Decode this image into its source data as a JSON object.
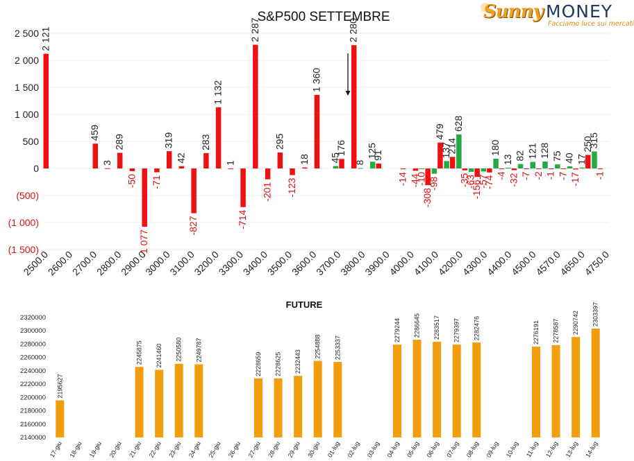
{
  "logo": {
    "brand_a": "Sunny",
    "brand_b": "MONEY",
    "tagline": "Facciamo luce sui mercati",
    "colors": {
      "brand_a": "#f0a020",
      "brand_b": "#1f3a63"
    }
  },
  "chart_data": [
    {
      "type": "bar",
      "title": "S&P500 SETTEMBRE",
      "xlabel": "",
      "ylabel": "",
      "ylim": [
        -1500,
        2500
      ],
      "y_ticks": [
        {
          "value": 2500,
          "label": "2 500"
        },
        {
          "value": 2000,
          "label": "2 000"
        },
        {
          "value": 1500,
          "label": "1 500"
        },
        {
          "value": 1000,
          "label": "1 000"
        },
        {
          "value": 500,
          "label": "500"
        },
        {
          "value": 0,
          "label": "0"
        },
        {
          "value": -500,
          "label": "(500)"
        },
        {
          "value": -1000,
          "label": "(1 000)"
        },
        {
          "value": -1500,
          "label": "(1 500)"
        }
      ],
      "x_tick_labels": [
        "2500.0",
        "2600.0",
        "2700.0",
        "2800.0",
        "2900.0",
        "3000.0",
        "3100.0",
        "3200.0",
        "3300.0",
        "3400.0",
        "3500.0",
        "3600.0",
        "3700.0",
        "3800.0",
        "3900.0",
        "4000.0",
        "4100.0",
        "4200.0",
        "4300.0",
        "4400.0",
        "4500.0",
        "4570.0",
        "4650.0",
        "4750.0"
      ],
      "grid": true,
      "colors": {
        "red": "#ee1111",
        "green": "#22aa44",
        "negative_label": "#dd1111"
      },
      "annotations": [
        {
          "type": "arrow-down",
          "category_index": 16
        }
      ],
      "series": [
        {
          "color": "red",
          "values": [
            {
              "i": 0,
              "v": 2121,
              "label": "2 121"
            },
            {
              "i": 4,
              "v": 459,
              "label": "459"
            },
            {
              "i": 5,
              "v": 3,
              "label": "3"
            },
            {
              "i": 6,
              "v": 289,
              "label": "289"
            },
            {
              "i": 7,
              "v": -50,
              "label": "-50"
            },
            {
              "i": 8,
              "v": -1077,
              "label": "-1 077"
            },
            {
              "i": 9,
              "v": -71,
              "label": "-71"
            },
            {
              "i": 10,
              "v": 319,
              "label": "319"
            },
            {
              "i": 11,
              "v": 42,
              "label": "42"
            },
            {
              "i": 12,
              "v": -827,
              "label": "-827"
            },
            {
              "i": 13,
              "v": 283,
              "label": "283"
            },
            {
              "i": 14,
              "v": 1132,
              "label": "1 132"
            },
            {
              "i": 15,
              "v": 1,
              "label": "1"
            },
            {
              "i": 16,
              "v": -714,
              "label": "-714"
            },
            {
              "i": 17,
              "v": 2287,
              "label": "2 287"
            },
            {
              "i": 18,
              "v": -201,
              "label": "-201"
            },
            {
              "i": 19,
              "v": 295,
              "label": "295"
            },
            {
              "i": 20,
              "v": -123,
              "label": "-123"
            },
            {
              "i": 21,
              "v": 18,
              "label": "18"
            },
            {
              "i": 22,
              "v": 1360,
              "label": "1 360"
            },
            {
              "i": 24,
              "v": 176,
              "label": "176"
            },
            {
              "i": 25,
              "v": 2280,
              "label": "2 280"
            },
            {
              "i": 27,
              "v": 91,
              "label": "91"
            },
            {
              "i": 29,
              "v": -14,
              "label": "-14"
            },
            {
              "i": 30,
              "v": -44,
              "label": "-44"
            },
            {
              "i": 31,
              "v": -308,
              "label": "-308"
            },
            {
              "i": 32,
              "v": 479,
              "label": "479"
            },
            {
              "i": 33,
              "v": 214,
              "label": "214"
            },
            {
              "i": 34,
              "v": -35,
              "label": "-35"
            },
            {
              "i": 35,
              "v": -156,
              "label": "-156"
            },
            {
              "i": 36,
              "v": -74,
              "label": "-74"
            },
            {
              "i": 37,
              "v": -4,
              "label": "-4"
            },
            {
              "i": 38,
              "v": -32,
              "label": "-32"
            },
            {
              "i": 39,
              "v": -7,
              "label": "-7"
            },
            {
              "i": 40,
              "v": -2,
              "label": "-2"
            },
            {
              "i": 41,
              "v": -1,
              "label": "-1"
            },
            {
              "i": 42,
              "v": -7,
              "label": "-7"
            },
            {
              "i": 43,
              "v": -17,
              "label": "-17"
            },
            {
              "i": 44,
              "v": 250,
              "label": "250"
            },
            {
              "i": 45,
              "v": -1,
              "label": "-1"
            }
          ]
        },
        {
          "color": "green",
          "values": [
            {
              "i": 23,
              "v": 45,
              "label": "45"
            },
            {
              "i": 25,
              "v": 8,
              "label": "8"
            },
            {
              "i": 26,
              "v": 125,
              "label": "125"
            },
            {
              "i": 30,
              "v": -10,
              "label": "-10"
            },
            {
              "i": 31,
              "v": -98,
              "label": "-98"
            },
            {
              "i": 32,
              "v": 137,
              "label": "137"
            },
            {
              "i": 33,
              "v": 628,
              "label": "628"
            },
            {
              "i": 34,
              "v": -63,
              "label": "-63"
            },
            {
              "i": 35,
              "v": -57,
              "label": "-57"
            },
            {
              "i": 36,
              "v": 180,
              "label": "180"
            },
            {
              "i": 37,
              "v": 13,
              "label": "13"
            },
            {
              "i": 38,
              "v": 82,
              "label": "82"
            },
            {
              "i": 39,
              "v": 121,
              "label": "121"
            },
            {
              "i": 40,
              "v": 128,
              "label": "128"
            },
            {
              "i": 41,
              "v": 75,
              "label": "75"
            },
            {
              "i": 42,
              "v": 40,
              "label": "40"
            },
            {
              "i": 43,
              "v": 17,
              "label": "17"
            },
            {
              "i": 44,
              "v": 315,
              "label": "315"
            }
          ]
        }
      ]
    },
    {
      "type": "bar",
      "title": "FUTURE",
      "xlabel": "",
      "ylabel": "",
      "ylim": [
        2140000,
        2320000
      ],
      "y_ticks": [
        2320000,
        2300000,
        2280000,
        2260000,
        2240000,
        2220000,
        2200000,
        2180000,
        2160000,
        2140000
      ],
      "grid": false,
      "color": "#f29d0c",
      "categories": [
        "17-giu",
        "18-giu",
        "19-giu",
        "20-giu",
        "21-giu",
        "22-giu",
        "23-giu",
        "24-giu",
        "25-giu",
        "26-giu",
        "27-giu",
        "28-giu",
        "29-giu",
        "30-giu",
        "01-lug",
        "02-lug",
        "03-lug",
        "04-lug",
        "05-lug",
        "06-lug",
        "07-lug",
        "08-lug",
        "09-lug",
        "10-lug",
        "11-lug",
        "12-lug",
        "13-lug",
        "14-lug"
      ],
      "values": [
        2195627,
        null,
        null,
        null,
        2245875,
        2241460,
        2250580,
        2249787,
        null,
        null,
        2228659,
        2228625,
        2232443,
        2254888,
        2253337,
        null,
        null,
        2279244,
        2286645,
        2283517,
        2279397,
        2282476,
        null,
        null,
        2276191,
        2278587,
        2290742,
        2303397
      ]
    }
  ]
}
